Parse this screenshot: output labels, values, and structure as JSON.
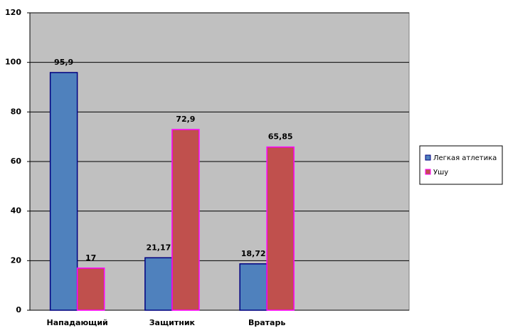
{
  "chart_data": {
    "type": "bar",
    "categories": [
      "Нападающий",
      "Защитник",
      "Вратарь",
      null
    ],
    "series": [
      {
        "name": "Легкая атлетика",
        "color": "#4f81bd",
        "edgecolor": "#000080",
        "values": [
          95.9,
          21.17,
          18.72,
          null
        ],
        "value_labels": [
          "95,9",
          "21,17",
          "18,72",
          null
        ]
      },
      {
        "name": "Ушу",
        "color": "#c0504d",
        "edgecolor": "#ff00ff",
        "values": [
          17,
          72.9,
          65.85,
          null
        ],
        "value_labels": [
          "17",
          "72,9",
          "65,85",
          null
        ]
      }
    ],
    "ylim": [
      0,
      120
    ],
    "yticks": [
      0,
      20,
      40,
      60,
      80,
      100,
      120
    ],
    "grid": true,
    "legend": "right",
    "background": "#c0c0c0"
  }
}
